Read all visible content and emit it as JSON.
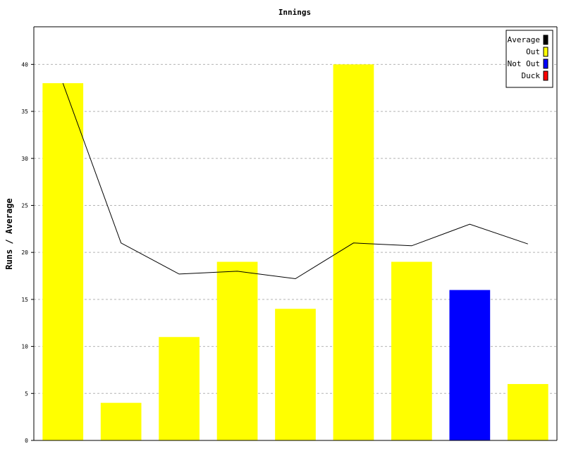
{
  "chart_data": {
    "type": "bar",
    "title": "Innings",
    "xlabel": "",
    "ylabel": "Runs / Average",
    "ylim": [
      0,
      44
    ],
    "yticks": [
      0,
      5,
      10,
      15,
      20,
      25,
      30,
      35,
      40
    ],
    "grid": true,
    "legend_position": "top-right",
    "legend": [
      {
        "label": "Average",
        "color": "#000000"
      },
      {
        "label": "Out",
        "color": "#ffff00"
      },
      {
        "label": "Not Out",
        "color": "#0000ff"
      },
      {
        "label": "Duck",
        "color": "#ff0000"
      }
    ],
    "bars": [
      {
        "value": 38,
        "status": "Out"
      },
      {
        "value": 4,
        "status": "Out"
      },
      {
        "value": 11,
        "status": "Out"
      },
      {
        "value": 19,
        "status": "Out"
      },
      {
        "value": 14,
        "status": "Out"
      },
      {
        "value": 40,
        "status": "Out"
      },
      {
        "value": 19,
        "status": "Out"
      },
      {
        "value": 16,
        "status": "Not Out"
      },
      {
        "value": 6,
        "status": "Out"
      }
    ],
    "series": [
      {
        "name": "Average",
        "values": [
          38,
          21,
          17.7,
          18,
          17.2,
          21,
          20.7,
          23,
          20.9
        ]
      }
    ],
    "colors": {
      "Out": "#ffff00",
      "Not Out": "#0000ff",
      "Duck": "#ff0000",
      "Average": "#000000"
    }
  }
}
